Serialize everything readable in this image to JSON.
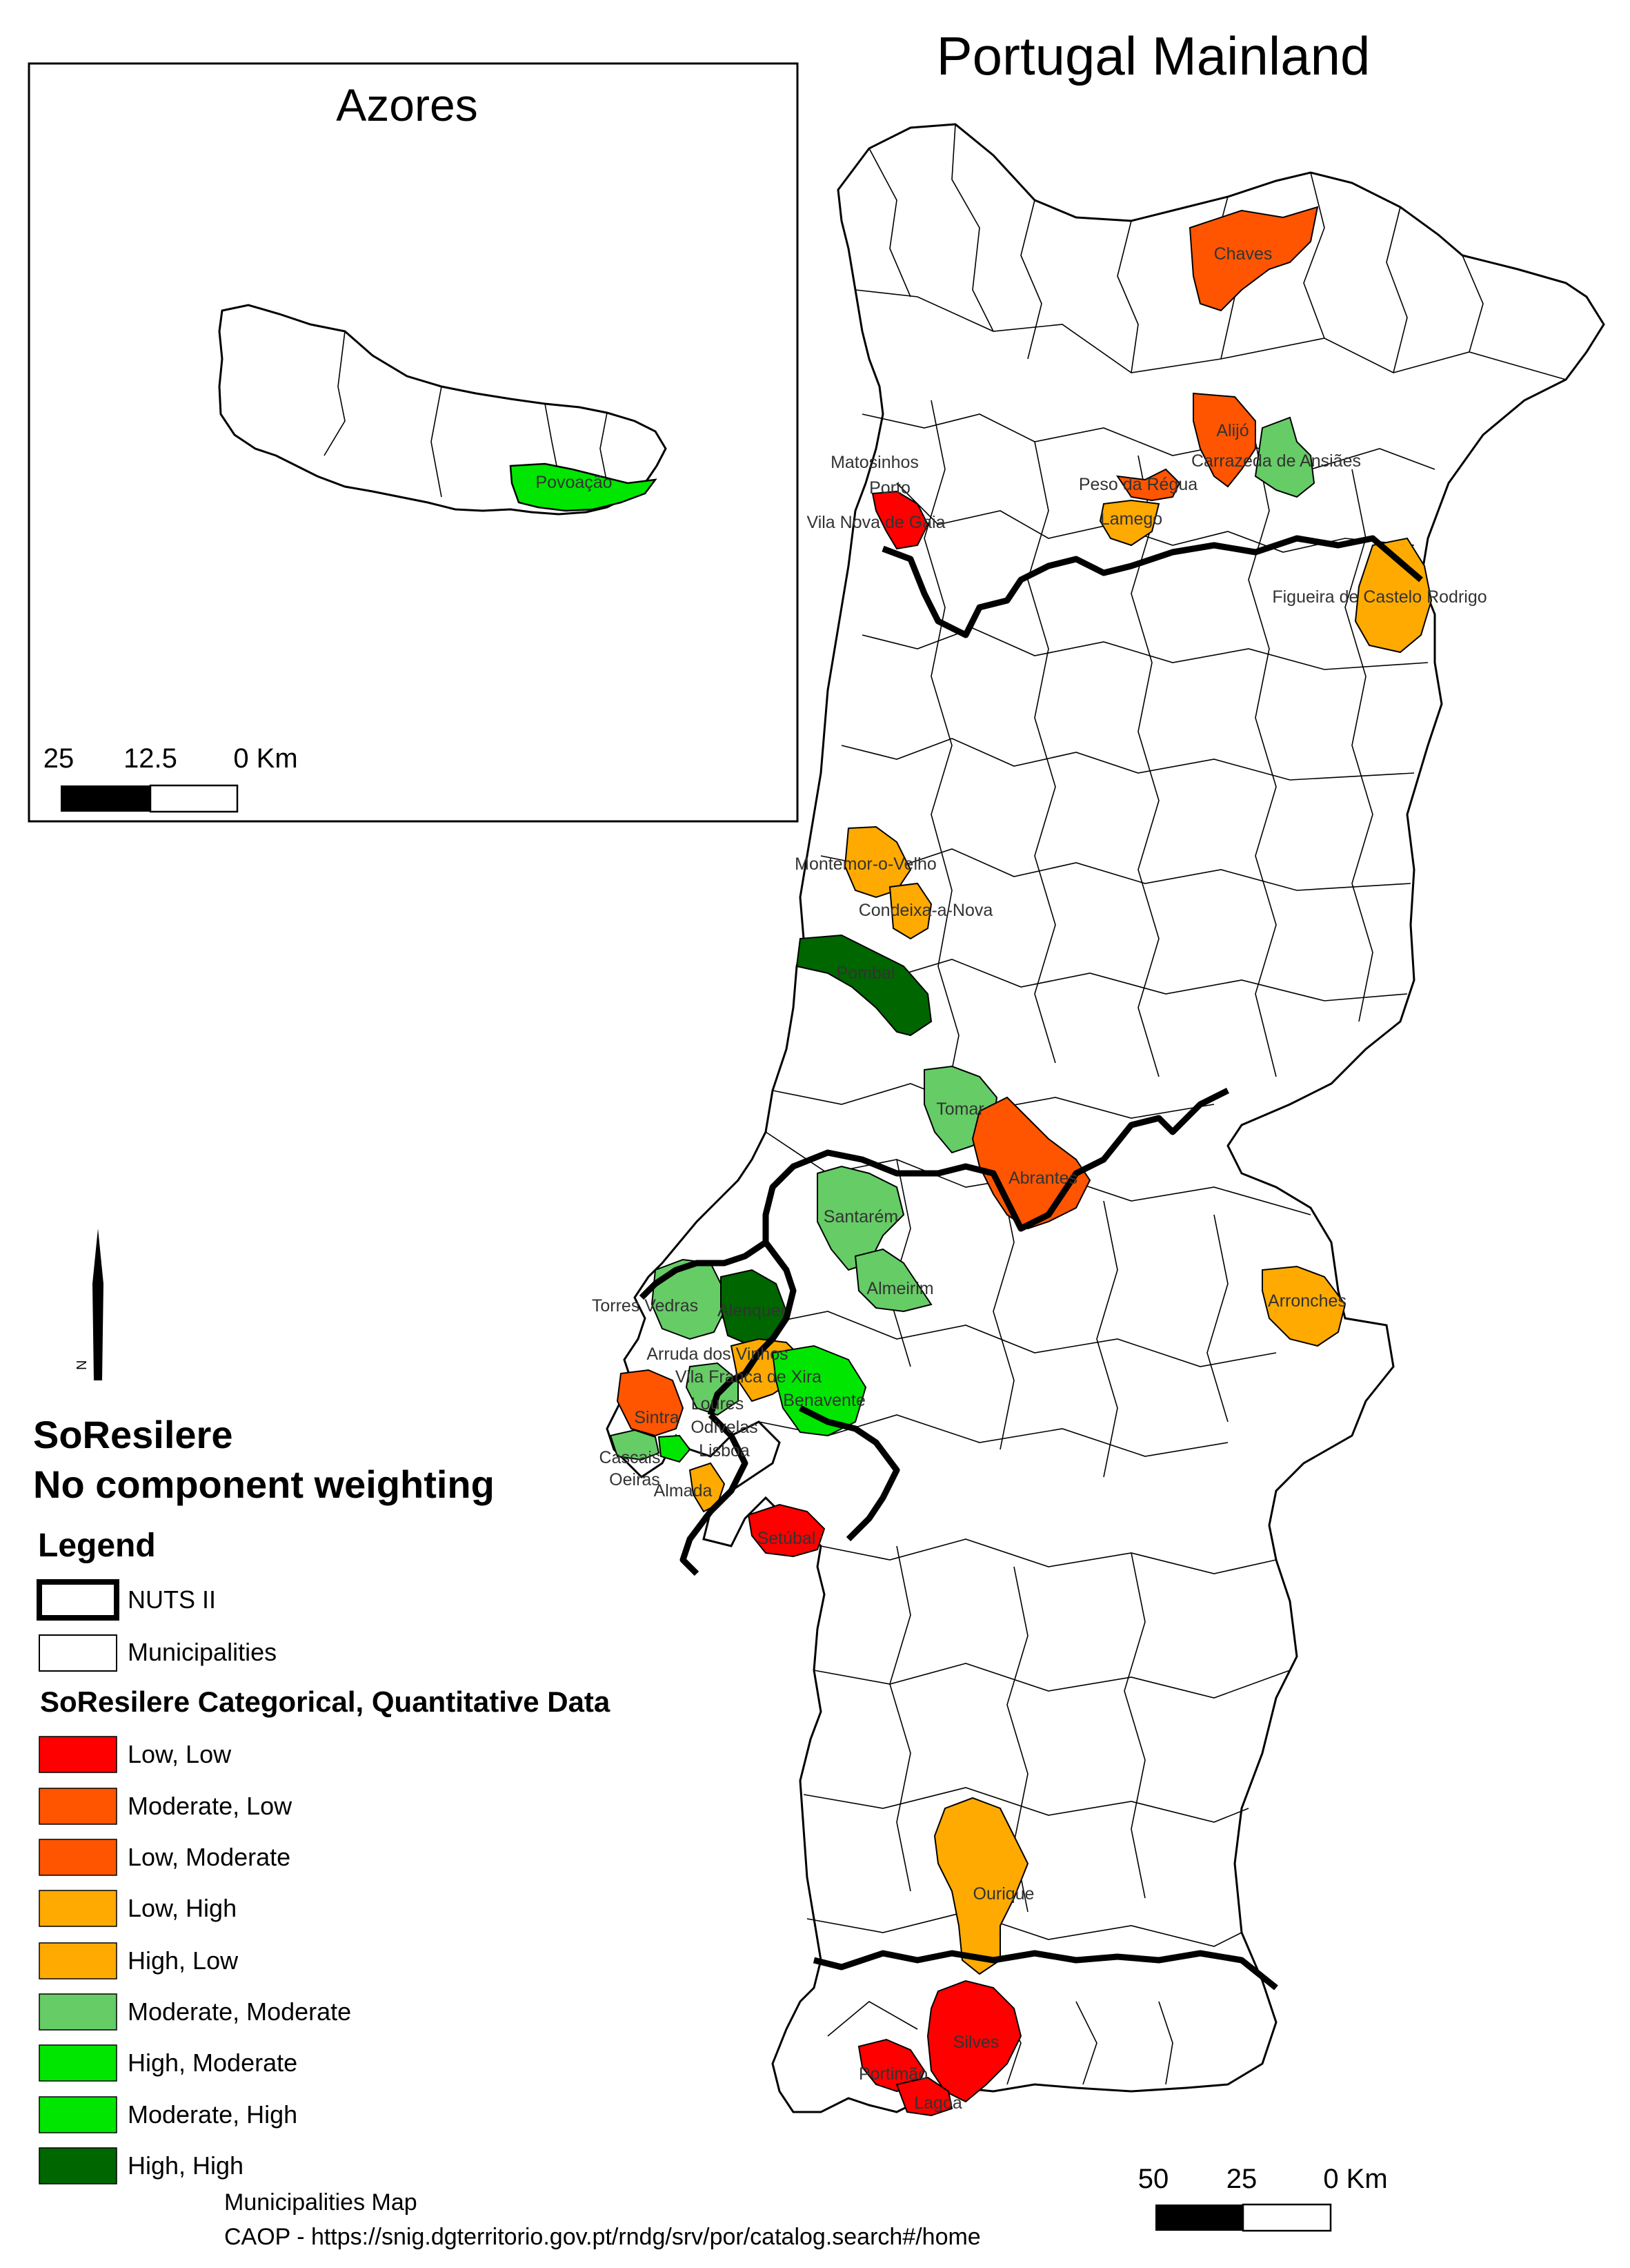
{
  "map": {
    "title": "Portugal Mainland",
    "inset": {
      "title": "Azores",
      "scale_labels": [
        "25",
        "12.5",
        "0 Km"
      ],
      "municipalities": [
        {
          "name": "Povoação",
          "category": "High, Moderate"
        }
      ]
    },
    "scale_labels": [
      "50",
      "25",
      "0 Km"
    ],
    "north_arrow_label": "N",
    "municipalities": [
      {
        "name": "Chaves",
        "category": "Moderate, Low"
      },
      {
        "name": "Alijó",
        "category": "Moderate, Low"
      },
      {
        "name": "Carrazeda de Ansiães",
        "category": "Moderate, Moderate"
      },
      {
        "name": "Matosinhos",
        "category": ""
      },
      {
        "name": "Porto",
        "category": ""
      },
      {
        "name": "Peso da Régua",
        "category": "Low, Moderate"
      },
      {
        "name": "Vila Nova de Gaia",
        "category": "Low, Low"
      },
      {
        "name": "Lamego",
        "category": "Low, High"
      },
      {
        "name": "Figueira de Castelo Rodrigo",
        "category": "Low, High"
      },
      {
        "name": "Montemor-o-Velho",
        "category": "High, Low"
      },
      {
        "name": "Condeixa-a-Nova",
        "category": "Low, High"
      },
      {
        "name": "Pombal",
        "category": "High, High"
      },
      {
        "name": "Tomar",
        "category": "Moderate, Moderate"
      },
      {
        "name": "Abrantes",
        "category": "Moderate, Low"
      },
      {
        "name": "Santarém",
        "category": "Moderate, Moderate"
      },
      {
        "name": "Almeirim",
        "category": "Moderate, Moderate"
      },
      {
        "name": "Arronches",
        "category": "Low, High"
      },
      {
        "name": "Torres Vedras",
        "category": "Moderate, Moderate"
      },
      {
        "name": "Alenquer",
        "category": "High, High"
      },
      {
        "name": "Arruda dos Vinhos",
        "category": ""
      },
      {
        "name": "Vila Franca de Xira",
        "category": "Low, High"
      },
      {
        "name": "Loures",
        "category": ""
      },
      {
        "name": "Benavente",
        "category": "High, Moderate"
      },
      {
        "name": "Sintra",
        "category": "Moderate, Low"
      },
      {
        "name": "Odivelas",
        "category": ""
      },
      {
        "name": "Lisboa",
        "category": ""
      },
      {
        "name": "Cascais",
        "category": ""
      },
      {
        "name": "Oeiras",
        "category": ""
      },
      {
        "name": "Almada",
        "category": ""
      },
      {
        "name": "Setúbal",
        "category": "Low, Low"
      },
      {
        "name": "Ourique",
        "category": "Low, High"
      },
      {
        "name": "Silves",
        "category": "Low, Low"
      },
      {
        "name": "Portimão",
        "category": "Low, Low"
      },
      {
        "name": "Lagoa",
        "category": "Low, Low"
      }
    ]
  },
  "figure": {
    "title_line1": "SoResilere",
    "title_line2": "No component weighting"
  },
  "legend": {
    "heading": "Legend",
    "nuts_label": "NUTS II",
    "municipalities_label": "Municipalities",
    "category_heading": "SoResilere Categorical, Quantitative Data",
    "categories": [
      {
        "label": "Low, Low",
        "color": "#ff0000"
      },
      {
        "label": "Moderate, Low",
        "color": "#ff5500"
      },
      {
        "label": "Low, Moderate",
        "color": "#ff5500"
      },
      {
        "label": "Low, High",
        "color": "#ffaa00"
      },
      {
        "label": "High, Low",
        "color": "#ffaa00"
      },
      {
        "label": "Moderate, Moderate",
        "color": "#66cc66"
      },
      {
        "label": "High, Moderate",
        "color": "#00e600"
      },
      {
        "label": "Moderate, High",
        "color": "#00e600"
      },
      {
        "label": "High, High",
        "color": "#006600"
      }
    ]
  },
  "source": {
    "line1": "Municipalities Map",
    "line2": "CAOP - https://snig.dgterritorio.gov.pt/rndg/srv/por/catalog.search#/home"
  }
}
